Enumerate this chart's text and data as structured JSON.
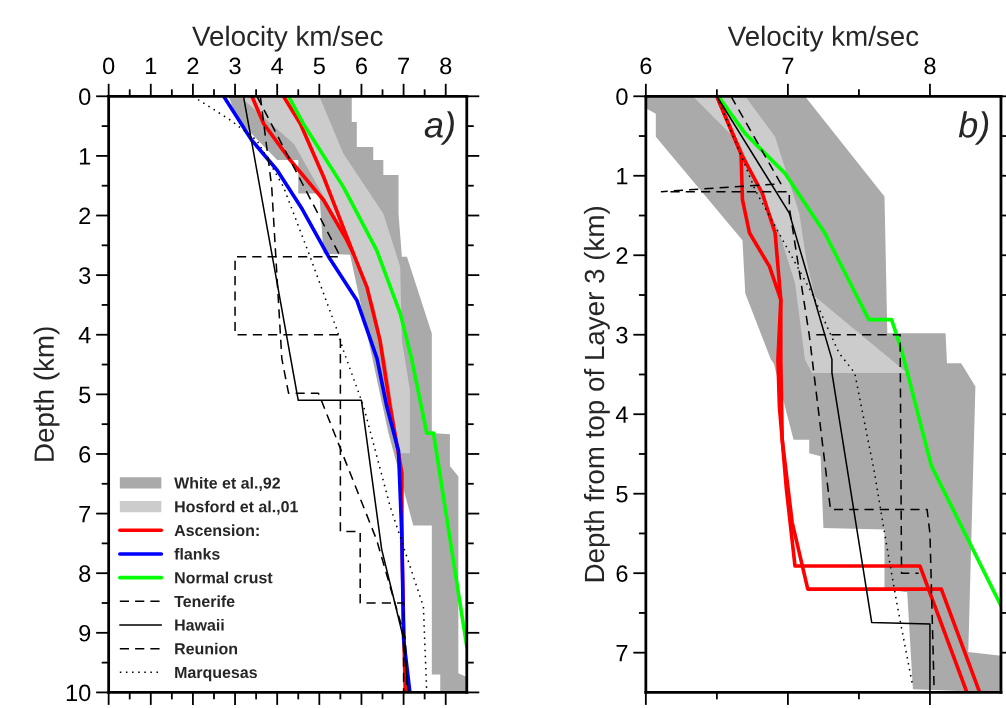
{
  "chart_data": [
    {
      "type": "line",
      "xlabel": "Velocity km/sec",
      "ylabel": "Depth (km)",
      "annotations": [
        "a)"
      ],
      "legend": "bottom left",
      "xlim": [
        0,
        8.5
      ],
      "ylim": [
        10,
        0
      ],
      "xticks": [
        0,
        {
          "value": 0.5,
          "label": null
        },
        1,
        {
          "value": 1.5,
          "label": null
        },
        2,
        {
          "value": 2.5,
          "label": null
        },
        3,
        {
          "value": 3.5,
          "label": null
        },
        4,
        {
          "value": 4.5,
          "label": null
        },
        5,
        {
          "value": 5.5,
          "label": null
        },
        6,
        {
          "value": 6.5,
          "label": null
        },
        7,
        {
          "value": 7.5,
          "label": null
        },
        8
      ],
      "yticks": [
        0,
        {
          "value": 0.5,
          "label": null
        },
        1,
        {
          "value": 1.5,
          "label": null
        },
        2,
        {
          "value": 2.5,
          "label": null
        },
        3,
        {
          "value": 3.5,
          "label": null
        },
        4,
        {
          "value": 4.5,
          "label": null
        },
        5,
        {
          "value": 5.5,
          "label": null
        },
        6,
        {
          "value": 6.5,
          "label": null
        },
        7,
        {
          "value": 7.5,
          "label": null
        },
        8,
        {
          "value": 8.5,
          "label": null
        },
        9,
        {
          "value": 9.5,
          "label": null
        },
        10
      ],
      "series": [
        {
          "name": "White et al.,92",
          "type": "area",
          "color": "#aaaaaa",
          "x": [
            2.85,
            5.77,
            5.77,
            5.89,
            5.89,
            6.28,
            6.28,
            6.52,
            6.52,
            6.88,
            6.88,
            6.96,
            7.08,
            7.67,
            7.67,
            8.1,
            8.1,
            8.3,
            8.3,
            8.5,
            8.5,
            7.87,
            7.87,
            7.67,
            7.67,
            7.23,
            6.64,
            5.73,
            5.1,
            5.0,
            4.5,
            4.5,
            4.0,
            3.04
          ],
          "values": [
            0,
            0,
            0.43,
            0.43,
            0.85,
            0.85,
            1.07,
            1.07,
            1.32,
            1.32,
            1.97,
            2.69,
            2.69,
            3.98,
            5.65,
            5.67,
            6.2,
            6.38,
            9.68,
            9.74,
            10,
            10,
            9.7,
            9.7,
            7.2,
            7.2,
            5.65,
            2.66,
            2.64,
            1.63,
            1.63,
            1.07,
            1.07,
            0.37
          ]
        },
        {
          "name": "Hosford et al.,01",
          "type": "area",
          "color": "#cccccc",
          "x": [
            3.1,
            5.0,
            5.57,
            6.52,
            6.92,
            6.96,
            7.15,
            7.15,
            7.71,
            6.9,
            6.6,
            6.3,
            5.6,
            4.4,
            3.6
          ],
          "values": [
            0,
            0,
            0.96,
            1.97,
            2.86,
            4.09,
            4.93,
            5.99,
            5.99,
            5.99,
            4.5,
            3.5,
            2.3,
            0.8,
            0.3
          ]
        },
        {
          "name": "Ascension:",
          "color": "#ff0000",
          "line_style": "solid",
          "x": [
            4.15,
            4.55,
            5.1,
            5.81,
            6.13,
            6.44,
            6.68,
            6.96,
            6.96,
            7.0,
            7.04
          ],
          "values": [
            0,
            0.46,
            1.35,
            2.64,
            3.2,
            4.09,
            5.2,
            6.32,
            7.44,
            8.84,
            10
          ]
        },
        {
          "color": "#ff0000",
          "line_style": "solid",
          "x": [
            3.4,
            3.68,
            4.31,
            5.1,
            5.65,
            5.81
          ],
          "values": [
            0,
            0.46,
            1.07,
            1.74,
            2.41,
            2.64
          ]
        },
        {
          "name": "flanks",
          "color": "#0000ff",
          "line_style": "solid",
          "x": [
            2.73,
            3.4,
            4.0,
            4.6,
            5.22,
            5.89,
            6.37,
            6.6,
            6.88,
            6.96,
            7.0,
            7.15
          ],
          "values": [
            0,
            0.74,
            1.24,
            1.9,
            2.69,
            3.42,
            4.4,
            5.2,
            5.95,
            7.4,
            9.1,
            10
          ]
        },
        {
          "name": "Normal crust",
          "color": "#00ff00",
          "line_style": "solid",
          "x": [
            4.27,
            4.62,
            5.57,
            6.36,
            6.92,
            7.19,
            7.55,
            7.71,
            8.5
          ],
          "values": [
            0,
            0.46,
            1.52,
            2.58,
            3.64,
            4.4,
            5.65,
            5.65,
            9.23
          ]
        },
        {
          "name": "Tenerife",
          "color": "#000000",
          "line_style": "dashed",
          "x": [
            3.52,
            5.5,
            3.0,
            3.0,
            5.5,
            5.5,
            5.97,
            5.97,
            7.0,
            7.0
          ],
          "values": [
            0,
            2.69,
            2.69,
            4.0,
            4.0,
            7.3,
            7.3,
            8.5,
            8.5,
            10
          ]
        },
        {
          "name": "Hawaii",
          "color": "#000000",
          "line_style": "solid",
          "x": [
            3.2,
            4.5,
            6.0,
            6.48,
            7.0,
            7.11
          ],
          "values": [
            0,
            5.1,
            5.1,
            7.6,
            9.1,
            10
          ]
        },
        {
          "name": "Reunion",
          "color": "#000000",
          "line_style": "dashed",
          "x": [
            3.6,
            3.87,
            4.11,
            4.27,
            4.98,
            6.36,
            7.04,
            7.08
          ],
          "values": [
            0,
            1.52,
            4.4,
            4.98,
            4.98,
            7.44,
            9.1,
            10
          ]
        },
        {
          "name": "Marquesas",
          "color": "#000000",
          "line_style": "dotted",
          "x": [
            2.0,
            2.89,
            3.52,
            4.15,
            4.78,
            5.42,
            5.57,
            6.05,
            6.68,
            7.47,
            7.55
          ],
          "values": [
            0,
            0.4,
            0.74,
            1.52,
            2.69,
            3.92,
            4.26,
            5.2,
            6.88,
            8.56,
            10
          ]
        }
      ]
    },
    {
      "type": "line",
      "xlabel": "Velocity km/sec",
      "ylabel": "Depth from top of Layer 3 (km)",
      "annotations": [
        "b)"
      ],
      "xlim": [
        6,
        8.5
      ],
      "ylim": [
        7.5,
        0
      ],
      "xticks": [
        6,
        {
          "value": 6.5,
          "label": null
        },
        7,
        {
          "value": 7.5,
          "label": null
        },
        8
      ],
      "yticks": [
        0,
        {
          "value": 0.5,
          "label": null
        },
        1,
        {
          "value": 1.5,
          "label": null
        },
        2,
        {
          "value": 2.5,
          "label": null
        },
        3,
        {
          "value": 3.5,
          "label": null
        },
        4,
        {
          "value": 4.5,
          "label": null
        },
        5,
        {
          "value": 5.5,
          "label": null
        },
        6,
        {
          "value": 6.5,
          "label": null
        },
        7
      ],
      "series": [
        {
          "type": "area",
          "color": "#aaaaaa",
          "x": [
            6.0,
            7.12,
            7.68,
            7.7,
            8.11,
            8.12,
            8.22,
            8.32,
            8.27,
            8.5,
            8.5,
            7.88,
            7.84,
            7.68,
            7.68,
            7.25,
            7.23,
            7.15,
            7.15,
            7.04,
            6.9,
            6.88,
            6.7,
            6.68,
            6.07,
            6.07,
            6.0
          ],
          "values": [
            0,
            0,
            1.26,
            2.98,
            2.98,
            3.36,
            3.36,
            3.65,
            6.99,
            7.04,
            7.5,
            7.46,
            6.24,
            6.2,
            5.45,
            5.43,
            4.53,
            4.49,
            4.32,
            4.32,
            3.36,
            3.31,
            2.48,
            1.81,
            0.51,
            0.22,
            0.15
          ]
        },
        {
          "type": "area",
          "color": "#cccccc",
          "x": [
            6.33,
            6.7,
            6.91,
            7.08,
            7.13,
            7.19,
            7.84,
            7.17,
            7.12,
            7.05,
            6.94,
            6.66
          ],
          "values": [
            0,
            0,
            0.51,
            1.47,
            2.06,
            2.52,
            3.48,
            3.48,
            3.31,
            2.35,
            1.72,
            0.59
          ]
        },
        {
          "color": "#ff0000",
          "line_style": "solid",
          "x": [
            6.5,
            6.67,
            6.68,
            6.73,
            6.87,
            6.95,
            6.93,
            6.94,
            6.99,
            7.05,
            7.93,
            8.26
          ],
          "values": [
            0,
            0.72,
            1.3,
            1.72,
            2.14,
            2.56,
            3.31,
            3.9,
            4.95,
            5.91,
            5.91,
            7.5
          ]
        },
        {
          "color": "#ff0000",
          "line_style": "solid",
          "x": [
            6.5,
            6.67,
            6.82,
            6.91,
            6.95,
            6.95,
            6.96,
            7.03,
            7.14,
            8.08,
            8.35
          ],
          "values": [
            0,
            0.72,
            1.22,
            1.72,
            2.56,
            3.31,
            4.32,
            5.36,
            6.2,
            6.2,
            7.5
          ]
        },
        {
          "color": "#00ff00",
          "line_style": "solid",
          "x": [
            6.51,
            6.7,
            6.98,
            7.26,
            7.45,
            7.57,
            7.73,
            7.8,
            8.01,
            8.5
          ],
          "values": [
            0,
            0.47,
            0.97,
            1.72,
            2.39,
            2.81,
            2.81,
            3.19,
            4.65,
            6.41
          ]
        },
        {
          "color": "#000000",
          "line_style": "dashed",
          "x": [
            6.6,
            6.95,
            6.11,
            7.01,
            7.01,
            7.15,
            7.3,
            7.98,
            8.0,
            8.03
          ],
          "values": [
            0,
            1.1,
            1.2,
            1.2,
            1.4,
            3.0,
            5.2,
            5.2,
            5.5,
            7.5
          ]
        },
        {
          "color": "#000000",
          "line_style": "dashed",
          "x": [
            7.2,
            7.79,
            7.8,
            7.92
          ],
          "values": [
            3.0,
            3.0,
            6.0,
            6.0
          ]
        },
        {
          "color": "#000000",
          "line_style": "solid",
          "x": [
            6.5,
            7.01,
            7.31,
            7.31,
            7.59,
            8.0,
            8.0
          ],
          "values": [
            0,
            1.47,
            3.31,
            3.48,
            6.62,
            6.64,
            7.5
          ]
        },
        {
          "color": "#000000",
          "line_style": "dotted",
          "x": [
            6.5,
            6.77,
            7.17,
            7.36,
            7.47,
            7.61,
            7.68,
            7.77,
            7.88
          ],
          "values": [
            0,
            1.18,
            2.48,
            3.23,
            3.48,
            4.74,
            5.49,
            6.41,
            7.43
          ]
        }
      ]
    }
  ]
}
